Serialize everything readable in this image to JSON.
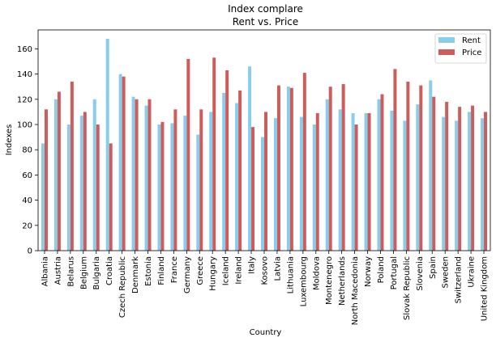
{
  "chart_data": {
    "type": "bar",
    "title": "Index complare",
    "subtitle": "Rent vs. Price",
    "xlabel": "Country",
    "ylabel": "Indexes",
    "ylim": [
      0,
      175
    ],
    "yticks": [
      0,
      20,
      40,
      60,
      80,
      100,
      120,
      140,
      160
    ],
    "legend_position": "top-right",
    "categories": [
      "Albania",
      "Austria",
      "Belarus",
      "Belgium",
      "Bulgaria",
      "Croatia",
      "Czech Republic",
      "Denmark",
      "Estonia",
      "Finland",
      "France",
      "Germany",
      "Greece",
      "Hungary",
      "Iceland",
      "Ireland",
      "Italy",
      "Kosovo",
      "Latvia",
      "Lithuania",
      "Luxembourg",
      "Moldova",
      "Montenegro",
      "Netherlands",
      "North Macedonia",
      "Norway",
      "Poland",
      "Portugal",
      "Slovak Republic",
      "Slovenia",
      "Spain",
      "Sweden",
      "Switzerland",
      "Ukraine",
      "United Kingdom"
    ],
    "series": [
      {
        "name": "Rent",
        "color": "#87ceeb",
        "values": [
          85,
          120,
          100,
          107,
          120,
          168,
          140,
          122,
          115,
          100,
          101,
          107,
          92,
          110,
          125,
          117,
          146,
          90,
          105,
          130,
          106,
          100,
          120,
          112,
          109,
          109,
          120,
          111,
          103,
          116,
          135,
          106,
          103,
          110,
          105
        ]
      },
      {
        "name": "Price",
        "color": "#cd5c5c",
        "values": [
          112,
          126,
          134,
          110,
          100,
          85,
          138,
          120,
          120,
          102,
          112,
          152,
          112,
          153,
          143,
          127,
          98,
          110,
          131,
          129,
          141,
          109,
          130,
          132,
          100,
          109,
          124,
          144,
          134,
          131,
          122,
          118,
          114,
          115,
          110
        ]
      }
    ]
  }
}
